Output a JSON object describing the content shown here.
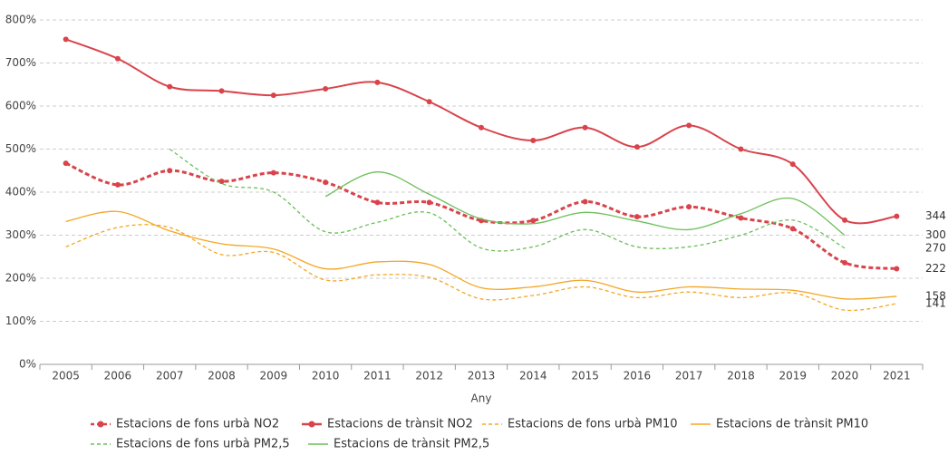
{
  "chart_data": {
    "type": "line",
    "x_label": "Any",
    "categories": [
      "2005",
      "2006",
      "2007",
      "2008",
      "2009",
      "2010",
      "2011",
      "2012",
      "2013",
      "2014",
      "2015",
      "2016",
      "2017",
      "2018",
      "2019",
      "2020",
      "2021"
    ],
    "ylim": [
      0,
      800
    ],
    "yticks": [
      {
        "value": 0,
        "label": "0%"
      },
      {
        "value": 100,
        "label": "100%"
      },
      {
        "value": 200,
        "label": "200%"
      },
      {
        "value": 300,
        "label": "300%"
      },
      {
        "value": 400,
        "label": "400%"
      },
      {
        "value": 500,
        "label": "500%"
      },
      {
        "value": 600,
        "label": "600%"
      },
      {
        "value": 700,
        "label": "700%"
      },
      {
        "value": 800,
        "label": "800%"
      }
    ],
    "grid": true,
    "legend": "bottom",
    "series": [
      {
        "name": "Estacions de fons urbà NO2",
        "color": "#d9434b",
        "line_style": "dashed",
        "markers": true,
        "width": 3,
        "values": [
          467,
          417,
          450,
          425,
          445,
          423,
          376,
          376,
          334,
          334,
          378,
          343,
          366,
          340,
          315,
          236,
          222
        ]
      },
      {
        "name": "Estacions de trànsit NO2",
        "color": "#d9434b",
        "line_style": "solid",
        "markers": true,
        "width": 2,
        "values": [
          755,
          710,
          645,
          635,
          625,
          640,
          655,
          610,
          550,
          520,
          550,
          505,
          555,
          500,
          465,
          335,
          344
        ]
      },
      {
        "name": "Estacions de fons urbà PM10",
        "color": "#f5a623",
        "line_style": "dashed",
        "markers": false,
        "width": 1.3,
        "values": [
          273,
          318,
          318,
          255,
          260,
          196,
          208,
          202,
          152,
          160,
          180,
          155,
          168,
          155,
          166,
          126,
          141
        ]
      },
      {
        "name": "Estacions de trànsit PM10",
        "color": "#f5a623",
        "line_style": "solid",
        "markers": false,
        "width": 1.3,
        "values": [
          332,
          355,
          310,
          280,
          268,
          222,
          238,
          232,
          178,
          180,
          195,
          168,
          180,
          175,
          172,
          152,
          158
        ]
      },
      {
        "name": "Estacions de fons urbà PM2,5",
        "color": "#6bbf59",
        "line_style": "dashed",
        "markers": false,
        "width": 1.3,
        "values": [
          null,
          null,
          500,
          420,
          400,
          308,
          330,
          352,
          270,
          273,
          313,
          273,
          273,
          300,
          335,
          270,
          null
        ]
      },
      {
        "name": "Estacions de trànsit PM2,5",
        "color": "#6bbf59",
        "line_style": "solid",
        "markers": false,
        "width": 1.3,
        "values": [
          null,
          null,
          null,
          null,
          null,
          390,
          447,
          395,
          338,
          327,
          353,
          333,
          313,
          350,
          385,
          300,
          null
        ]
      }
    ]
  }
}
